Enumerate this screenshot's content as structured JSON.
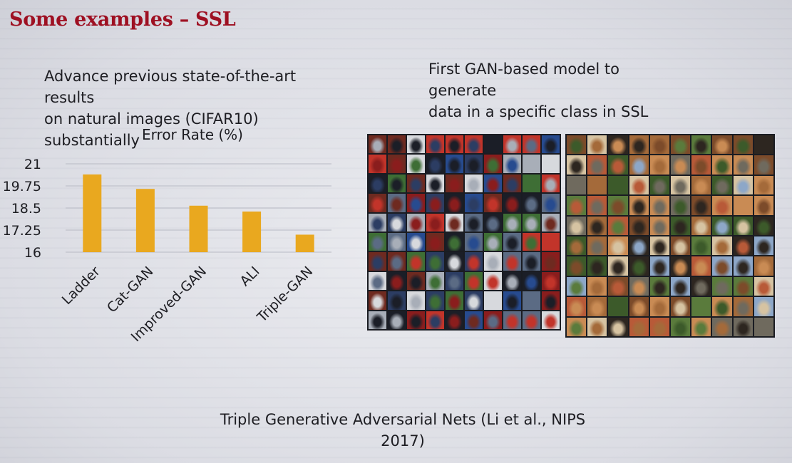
{
  "slide": {
    "title": "Some examples – SSL",
    "left_text": [
      "Advance previous state-of-the-art",
      "results",
      "on natural images (CIFAR10)",
      "substantially"
    ],
    "right_text": [
      "First GAN-based model to",
      "generate",
      "data in a specific class in SSL"
    ],
    "citation": [
      "Triple Generative Adversarial Nets (Li et al., NIPS",
      "2017)"
    ]
  },
  "colors": {
    "title": "#9e1022",
    "bar": "#e9a81f",
    "text": "#1d1d22"
  },
  "chart_data": {
    "type": "bar",
    "title": "Error Rate (%)",
    "categories": [
      "Ladder",
      "Cat-GAN",
      "Improved-GAN",
      "ALI",
      "Triple-GAN"
    ],
    "values": [
      20.4,
      19.58,
      18.63,
      18.3,
      16.99
    ],
    "ylim": [
      16,
      21
    ],
    "yticks": [
      "21",
      "19.75",
      "18.5",
      "17.25",
      "16"
    ],
    "grid": true,
    "legend": "none"
  },
  "sample_grids": {
    "cars": {
      "palette": [
        "#8a1d1d",
        "#c2342a",
        "#2c3d63",
        "#1b1e27",
        "#5b6b84",
        "#d7d9dd",
        "#3e6e35",
        "#274b8f",
        "#a8aeb8",
        "#6e2a20"
      ]
    },
    "horses": {
      "palette": [
        "#7c4b2a",
        "#a46a3a",
        "#5a7b3c",
        "#3c5a2a",
        "#c98b54",
        "#2d2620",
        "#8da7c8",
        "#b85a38",
        "#6f6a5e",
        "#d6c3a2"
      ]
    }
  }
}
